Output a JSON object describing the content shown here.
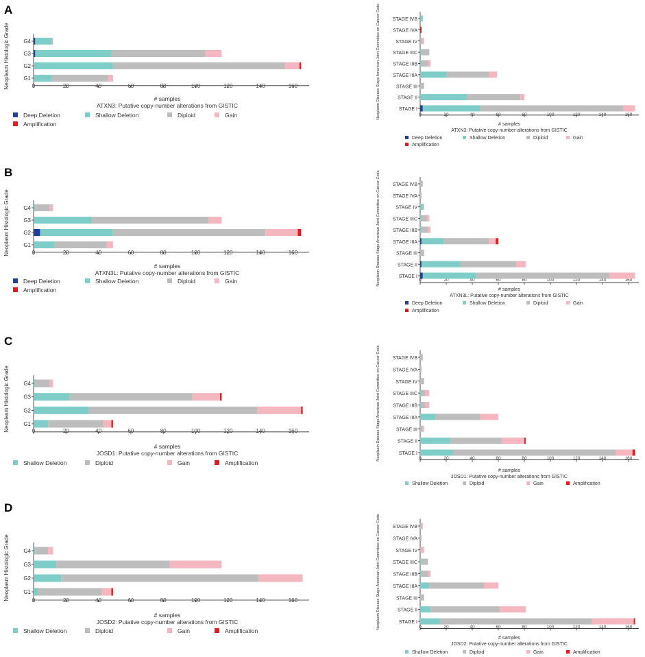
{
  "panel_labels": [
    "A",
    "B",
    "C",
    "D"
  ],
  "colors": {
    "Deep Deletion": "#1f3f9e",
    "Shallow Deletion": "#7ecdc8",
    "Diploid": "#bdbdbd",
    "Gain": "#f4b6bf",
    "Amplification": "#e8191c"
  },
  "chart_data": [
    {
      "id": "A-grade",
      "type": "bar",
      "orientation": "horizontal",
      "stacked": true,
      "categories": [
        "G4",
        "G3",
        "G2",
        "G1"
      ],
      "ylabel": "Neoplasm Histologic Grade",
      "xlabel": "# samples",
      "subtitle": "ATXN3: Putative copy-number alterations from GISTIC",
      "xlim": [
        0,
        170
      ],
      "xticks": [
        0,
        20,
        40,
        60,
        80,
        100,
        120,
        140,
        160
      ],
      "legend": [
        "Deep Deletion",
        "Shallow Deletion",
        "Diploid",
        "Gain",
        "Amplification"
      ],
      "series": [
        {
          "name": "Deep Deletion",
          "values": [
            1,
            1,
            0,
            0
          ]
        },
        {
          "name": "Shallow Deletion",
          "values": [
            10,
            47,
            49,
            11
          ]
        },
        {
          "name": "Diploid",
          "values": [
            1,
            58,
            106,
            35
          ]
        },
        {
          "name": "Gain",
          "values": [
            0,
            10,
            9,
            3
          ]
        },
        {
          "name": "Amplification",
          "values": [
            0,
            0,
            1,
            0
          ]
        }
      ]
    },
    {
      "id": "A-stage",
      "type": "bar",
      "orientation": "horizontal",
      "stacked": true,
      "categories": [
        "STAGE IVB",
        "STAGE IVA",
        "STAGE IV",
        "STAGE IIIC",
        "STAGE IIIB",
        "STAGE IIIA",
        "STAGE III",
        "STAGE II",
        "STAGE I"
      ],
      "ylabel": "Neoplasm Disease Stage American Joint Committee on Cancer Code",
      "xlabel": "# samples",
      "subtitle": "ATXN3: Putative copy-number alterations from GISTIC",
      "xlim": [
        0,
        168
      ],
      "xticks": [
        0,
        20,
        40,
        60,
        80,
        100,
        120,
        140,
        160
      ],
      "legend": [
        "Deep Deletion",
        "Shallow Deletion",
        "Diploid",
        "Gain",
        "Amplification"
      ],
      "series": [
        {
          "name": "Deep Deletion",
          "values": [
            0,
            0,
            0,
            0,
            0,
            0,
            0,
            0,
            2
          ]
        },
        {
          "name": "Shallow Deletion",
          "values": [
            2,
            0,
            0,
            1,
            1,
            20,
            0,
            36,
            44
          ]
        },
        {
          "name": "Diploid",
          "values": [
            0,
            0,
            2,
            6,
            5,
            33,
            3,
            41,
            110
          ]
        },
        {
          "name": "Gain",
          "values": [
            0,
            0,
            1,
            0,
            2,
            6,
            0,
            3,
            9
          ]
        },
        {
          "name": "Amplification",
          "values": [
            0,
            1,
            0,
            0,
            0,
            0,
            0,
            0,
            0
          ]
        }
      ]
    },
    {
      "id": "B-grade",
      "type": "bar",
      "orientation": "horizontal",
      "stacked": true,
      "categories": [
        "G4",
        "G3",
        "G2",
        "G1"
      ],
      "ylabel": "Neoplasm Histologic Grade",
      "xlabel": "# samples",
      "subtitle": "ATXN3L: Putative copy-number alterations from GISTIC",
      "xlim": [
        0,
        170
      ],
      "xticks": [
        0,
        20,
        40,
        60,
        80,
        100,
        120,
        140,
        160
      ],
      "legend": [
        "Deep Deletion",
        "Shallow Deletion",
        "Diploid",
        "Gain",
        "Amplification"
      ],
      "series": [
        {
          "name": "Deep Deletion",
          "values": [
            0,
            0,
            4,
            0
          ]
        },
        {
          "name": "Shallow Deletion",
          "values": [
            1,
            36,
            45,
            13
          ]
        },
        {
          "name": "Diploid",
          "values": [
            9,
            72,
            94,
            32
          ]
        },
        {
          "name": "Gain",
          "values": [
            2,
            8,
            20,
            4
          ]
        },
        {
          "name": "Amplification",
          "values": [
            0,
            0,
            2,
            0
          ]
        }
      ]
    },
    {
      "id": "B-stage",
      "type": "bar",
      "orientation": "horizontal",
      "stacked": true,
      "categories": [
        "STAGE IVB",
        "STAGE IVA",
        "STAGE IV",
        "STAGE IIIC",
        "STAGE IIIB",
        "STAGE IIIA",
        "STAGE III",
        "STAGE II",
        "STAGE I"
      ],
      "ylabel": "Neoplasm Disease Stage American Joint Committee on Cancer Code",
      "xlabel": "# samples",
      "subtitle": "ATXN3L: Putative copy-number alterations from GISTIC",
      "xlim": [
        0,
        168
      ],
      "xticks": [
        0,
        20,
        40,
        60,
        80,
        100,
        120,
        140,
        160
      ],
      "legend": [
        "Deep Deletion",
        "Shallow Deletion",
        "Diploid",
        "Gain",
        "Amplification"
      ],
      "series": [
        {
          "name": "Deep Deletion",
          "values": [
            0,
            0,
            0,
            0,
            0,
            1,
            0,
            1,
            2
          ]
        },
        {
          "name": "Shallow Deletion",
          "values": [
            0,
            0,
            2,
            1,
            1,
            17,
            0,
            30,
            41
          ]
        },
        {
          "name": "Diploid",
          "values": [
            2,
            1,
            1,
            4,
            5,
            35,
            3,
            43,
            102
          ]
        },
        {
          "name": "Gain",
          "values": [
            0,
            0,
            0,
            2,
            2,
            5,
            0,
            7,
            20
          ]
        },
        {
          "name": "Amplification",
          "values": [
            0,
            0,
            0,
            0,
            0,
            2,
            0,
            0,
            0
          ]
        }
      ]
    },
    {
      "id": "C-grade",
      "type": "bar",
      "orientation": "horizontal",
      "stacked": true,
      "categories": [
        "G4",
        "G3",
        "G2",
        "G1"
      ],
      "ylabel": "Neoplasm Histologic Grade",
      "xlabel": "# samples",
      "subtitle": "JOSD1: Putative copy-number alterations from GISTIC",
      "xlim": [
        0,
        170
      ],
      "xticks": [
        0,
        20,
        40,
        60,
        80,
        100,
        120,
        140,
        160
      ],
      "legend": [
        "Shallow Deletion",
        "Diploid",
        "Gain",
        "Amplification"
      ],
      "series": [
        {
          "name": "Shallow Deletion",
          "values": [
            1,
            22,
            34,
            9
          ]
        },
        {
          "name": "Diploid",
          "values": [
            9,
            76,
            104,
            34
          ]
        },
        {
          "name": "Gain",
          "values": [
            2,
            17,
            27,
            5
          ]
        },
        {
          "name": "Amplification",
          "values": [
            0,
            1,
            1,
            1
          ]
        }
      ]
    },
    {
      "id": "C-stage",
      "type": "bar",
      "orientation": "horizontal",
      "stacked": true,
      "categories": [
        "STAGE IVB",
        "STAGE IVA",
        "STAGE IV",
        "STAGE IIIC",
        "STAGE IIIB",
        "STAGE IIIA",
        "STAGE III",
        "STAGE II",
        "STAGE I"
      ],
      "ylabel": "Neoplasm Disease Stage American Joint Committee on Cancer Code",
      "xlabel": "# samples",
      "subtitle": "JOSD1: Putative copy-number alterations from GISTIC",
      "xlim": [
        0,
        168
      ],
      "xticks": [
        0,
        20,
        40,
        60,
        80,
        100,
        120,
        140,
        160
      ],
      "legend": [
        "Shallow Deletion",
        "Diploid",
        "Gain",
        "Amplification"
      ],
      "series": [
        {
          "name": "Shallow Deletion",
          "values": [
            0,
            0,
            0,
            1,
            1,
            12,
            0,
            23,
            25
          ]
        },
        {
          "name": "Diploid",
          "values": [
            2,
            1,
            3,
            3,
            3,
            34,
            2,
            40,
            125
          ]
        },
        {
          "name": "Gain",
          "values": [
            0,
            0,
            0,
            3,
            3,
            14,
            1,
            17,
            13
          ]
        },
        {
          "name": "Amplification",
          "values": [
            0,
            0,
            0,
            0,
            0,
            0,
            0,
            1,
            2
          ]
        }
      ]
    },
    {
      "id": "D-grade",
      "type": "bar",
      "orientation": "horizontal",
      "stacked": true,
      "categories": [
        "G4",
        "G3",
        "G2",
        "G1"
      ],
      "ylabel": "Neoplasm Histologic Grade",
      "xlabel": "# samples",
      "subtitle": "JOSD2: Putative copy-number alterations from GISTIC",
      "xlim": [
        0,
        170
      ],
      "xticks": [
        0,
        20,
        40,
        60,
        80,
        100,
        120,
        140,
        160
      ],
      "legend": [
        "Shallow Deletion",
        "Diploid",
        "Gain",
        "Amplification"
      ],
      "series": [
        {
          "name": "Shallow Deletion",
          "values": [
            1,
            14,
            17,
            3
          ]
        },
        {
          "name": "Diploid",
          "values": [
            8,
            70,
            122,
            39
          ]
        },
        {
          "name": "Gain",
          "values": [
            3,
            32,
            27,
            6
          ]
        },
        {
          "name": "Amplification",
          "values": [
            0,
            0,
            0,
            1
          ]
        }
      ]
    },
    {
      "id": "D-stage",
      "type": "bar",
      "orientation": "horizontal",
      "stacked": true,
      "categories": [
        "STAGE IVB",
        "STAGE IVA",
        "STAGE IV",
        "STAGE IIIC",
        "STAGE IIIB",
        "STAGE IIIA",
        "STAGE III",
        "STAGE II",
        "STAGE I"
      ],
      "ylabel": "Neoplasm Disease Stage American Joint Committee on Cancer Code",
      "xlabel": "# samples",
      "subtitle": "JOSD2: Putative copy-number alterations from GISTIC",
      "xlim": [
        0,
        168
      ],
      "xticks": [
        0,
        20,
        40,
        60,
        80,
        100,
        120,
        140,
        160
      ],
      "legend": [
        "Shallow Deletion",
        "Diploid",
        "Gain",
        "Amplification"
      ],
      "series": [
        {
          "name": "Shallow Deletion",
          "values": [
            0,
            0,
            0,
            1,
            1,
            7,
            0,
            8,
            15
          ]
        },
        {
          "name": "Diploid",
          "values": [
            1,
            1,
            1,
            5,
            5,
            42,
            3,
            53,
            117
          ]
        },
        {
          "name": "Gain",
          "values": [
            1,
            0,
            2,
            0,
            2,
            11,
            0,
            20,
            32
          ]
        },
        {
          "name": "Amplification",
          "values": [
            0,
            0,
            0,
            0,
            0,
            0,
            0,
            0,
            1
          ]
        }
      ]
    }
  ]
}
